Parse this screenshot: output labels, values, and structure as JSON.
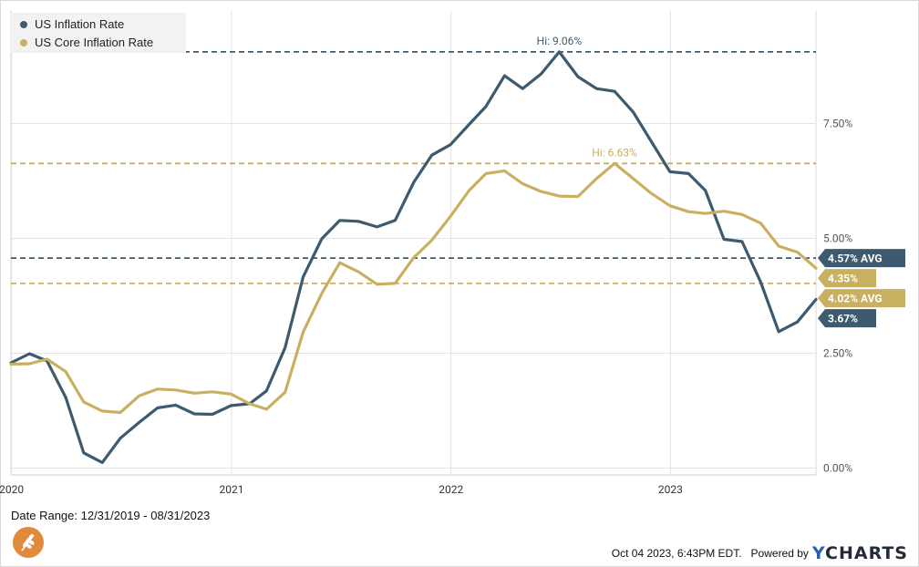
{
  "chart_data": {
    "type": "line",
    "series": [
      {
        "name": "US Inflation Rate",
        "color": "#3d5a6e",
        "x": [
          "2019-12-31",
          "2020-01-31",
          "2020-02-29",
          "2020-03-31",
          "2020-04-30",
          "2020-05-31",
          "2020-06-30",
          "2020-07-31",
          "2020-08-31",
          "2020-09-30",
          "2020-10-31",
          "2020-11-30",
          "2020-12-31",
          "2021-01-31",
          "2021-02-28",
          "2021-03-31",
          "2021-04-30",
          "2021-05-31",
          "2021-06-30",
          "2021-07-31",
          "2021-08-31",
          "2021-09-30",
          "2021-10-31",
          "2021-11-30",
          "2021-12-31",
          "2022-01-31",
          "2022-02-28",
          "2022-03-31",
          "2022-04-30",
          "2022-05-31",
          "2022-06-30",
          "2022-07-31",
          "2022-08-31",
          "2022-09-30",
          "2022-10-31",
          "2022-11-30",
          "2022-12-31",
          "2023-01-31",
          "2023-02-28",
          "2023-03-31",
          "2023-04-30",
          "2023-05-31",
          "2023-06-30",
          "2023-07-31",
          "2023-08-31"
        ],
        "values": [
          2.29,
          2.49,
          2.33,
          1.54,
          0.33,
          0.12,
          0.65,
          0.99,
          1.31,
          1.37,
          1.18,
          1.17,
          1.36,
          1.4,
          1.68,
          2.62,
          4.16,
          4.99,
          5.39,
          5.37,
          5.25,
          5.39,
          6.22,
          6.81,
          7.04,
          7.48,
          7.87,
          8.54,
          8.26,
          8.58,
          9.06,
          8.52,
          8.26,
          8.2,
          7.75,
          7.11,
          6.45,
          6.41,
          6.04,
          4.98,
          4.93,
          4.05,
          2.97,
          3.18,
          3.67
        ]
      },
      {
        "name": "US Core Inflation Rate",
        "color": "#c9b061",
        "x": [
          "2019-12-31",
          "2020-01-31",
          "2020-02-29",
          "2020-03-31",
          "2020-04-30",
          "2020-05-31",
          "2020-06-30",
          "2020-07-31",
          "2020-08-31",
          "2020-09-30",
          "2020-10-31",
          "2020-11-30",
          "2020-12-31",
          "2021-01-31",
          "2021-02-28",
          "2021-03-31",
          "2021-04-30",
          "2021-05-31",
          "2021-06-30",
          "2021-07-31",
          "2021-08-31",
          "2021-09-30",
          "2021-10-31",
          "2021-11-30",
          "2021-12-31",
          "2022-01-31",
          "2022-02-28",
          "2022-03-31",
          "2022-04-30",
          "2022-05-31",
          "2022-06-30",
          "2022-07-31",
          "2022-08-31",
          "2022-09-30",
          "2022-10-31",
          "2022-11-30",
          "2022-12-31",
          "2023-01-31",
          "2023-02-28",
          "2023-03-31",
          "2023-04-30",
          "2023-05-31",
          "2023-06-30",
          "2023-07-31",
          "2023-08-31"
        ],
        "values": [
          2.26,
          2.27,
          2.37,
          2.1,
          1.44,
          1.24,
          1.21,
          1.57,
          1.72,
          1.7,
          1.63,
          1.66,
          1.61,
          1.4,
          1.28,
          1.65,
          2.96,
          3.8,
          4.47,
          4.27,
          4.0,
          4.02,
          4.58,
          4.96,
          5.48,
          6.04,
          6.41,
          6.47,
          6.19,
          6.02,
          5.92,
          5.91,
          6.3,
          6.63,
          6.3,
          5.98,
          5.71,
          5.58,
          5.54,
          5.59,
          5.52,
          5.33,
          4.83,
          4.7,
          4.35
        ]
      }
    ],
    "y_ticks": [
      {
        "value": 0,
        "label": "0.00%"
      },
      {
        "value": 2.5,
        "label": "2.50%"
      },
      {
        "value": 5,
        "label": "5.00%"
      },
      {
        "value": 7.5,
        "label": "7.50%"
      }
    ],
    "x_ticks": [
      {
        "date": "2020-01-01",
        "label": "2020"
      },
      {
        "date": "2021-01-01",
        "label": "2021"
      },
      {
        "date": "2022-01-01",
        "label": "2022"
      },
      {
        "date": "2023-01-01",
        "label": "2023"
      }
    ],
    "ylim": [
      -0.15,
      9.95
    ],
    "xlim": [
      "2019-12-31",
      "2023-08-31"
    ],
    "reference_lines": [
      {
        "value": 9.06,
        "color": "#3d5a6e",
        "label": "Hi: 9.06%"
      },
      {
        "value": 6.63,
        "color": "#c9b061",
        "label": "Hi: 6.63%"
      },
      {
        "value": 4.57,
        "color": "#3d5a6e",
        "tag": "4.57% AVG"
      },
      {
        "value": 4.02,
        "color": "#c9b061",
        "tag": "4.02% AVG"
      }
    ],
    "end_tags": [
      {
        "value": 4.35,
        "color": "#c9b061",
        "label": "4.35%"
      },
      {
        "value": 3.67,
        "color": "#3d5a6e",
        "label": "3.67%"
      }
    ],
    "grid": {
      "vertical": true,
      "horizontal": true
    },
    "legend": "top-left"
  },
  "legend": {
    "items": [
      {
        "label": "US Inflation Rate",
        "color": "#3d5a6e"
      },
      {
        "label": "US Core Inflation Rate",
        "color": "#c9b061"
      }
    ]
  },
  "footer": {
    "date_range": "Date Range: 12/31/2019 - 08/31/2023",
    "timestamp": "Oct 04 2023, 6:43PM EDT.",
    "powered_by": "Powered by",
    "brand_y": "Y",
    "brand_rest": "CHARTS"
  },
  "logo": {
    "icon": "wheat-logo-icon",
    "color": "#e08a3c"
  }
}
